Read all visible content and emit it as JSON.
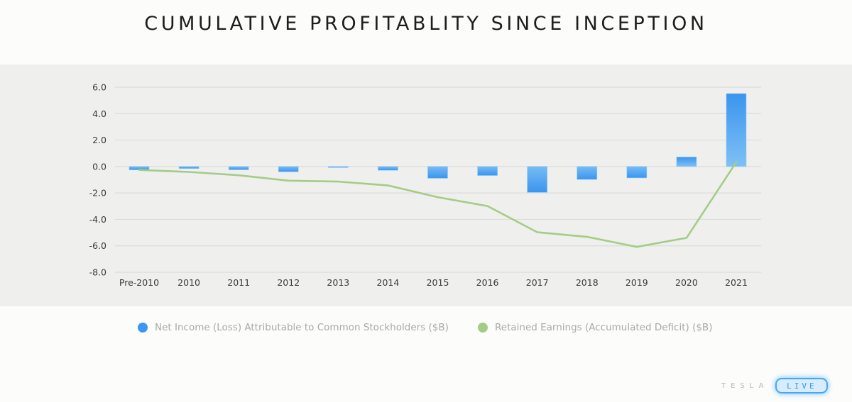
{
  "page": {
    "title": "CUMULATIVE PROFITABLITY SINCE INCEPTION",
    "brand_word": "TESLA",
    "brand_badge": "LIVE"
  },
  "chart_data": {
    "type": "bar",
    "title": "CUMULATIVE PROFITABLITY SINCE INCEPTION",
    "xlabel": "",
    "ylabel": "",
    "ylim": [
      -8.0,
      6.0
    ],
    "yticks": [
      "6.0",
      "4.0",
      "2.0",
      "0.0",
      "-2.0",
      "-4.0",
      "-6.0",
      "-8.0"
    ],
    "ytick_values": [
      6,
      4,
      2,
      0,
      -2,
      -4,
      -6,
      -8
    ],
    "grid": true,
    "legend_position": "bottom",
    "categories": [
      "Pre-2010",
      "2010",
      "2011",
      "2012",
      "2013",
      "2014",
      "2015",
      "2016",
      "2017",
      "2018",
      "2019",
      "2020",
      "2021"
    ],
    "series": [
      {
        "name": "Net Income (Loss) Attributable to Common Stockholders ($B)",
        "type": "bar",
        "color": "#3d97ef",
        "values": [
          -0.26,
          -0.15,
          -0.25,
          -0.4,
          -0.07,
          -0.29,
          -0.89,
          -0.68,
          -1.96,
          -0.98,
          -0.86,
          0.72,
          5.52
        ]
      },
      {
        "name": "Retained Earnings (Accumulated Deficit) ($B)",
        "type": "line",
        "color": "#a3cd86",
        "values": [
          -0.26,
          -0.41,
          -0.66,
          -1.07,
          -1.14,
          -1.43,
          -2.32,
          -2.99,
          -4.97,
          -5.32,
          -6.08,
          -5.4,
          0.33
        ]
      }
    ]
  }
}
